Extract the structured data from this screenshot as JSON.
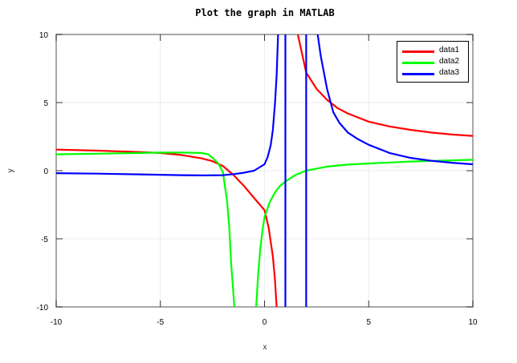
{
  "chart_data": {
    "type": "line",
    "title": "Plot the graph in MATLAB",
    "xlabel": "x",
    "ylabel": "y",
    "xlim": [
      -10,
      10
    ],
    "ylim": [
      -10,
      10
    ],
    "xticks": [
      -10,
      -5,
      0,
      5,
      10
    ],
    "yticks": [
      -10,
      -5,
      0,
      5,
      10
    ],
    "grid": true,
    "legend_position": "northeast",
    "series": [
      {
        "name": "data1",
        "color": "#ff0000",
        "segments": [
          [
            [
              -10,
              1.55
            ],
            [
              -8,
              1.47
            ],
            [
              -6,
              1.37
            ],
            [
              -5,
              1.3
            ],
            [
              -4,
              1.15
            ],
            [
              -3,
              0.9
            ],
            [
              -2.5,
              0.7
            ],
            [
              -2,
              0.35
            ],
            [
              -1.5,
              -0.3
            ],
            [
              -1,
              -1.1
            ],
            [
              -0.5,
              -2.0
            ],
            [
              0,
              -2.9
            ],
            [
              0.2,
              -4.2
            ],
            [
              0.4,
              -6.3
            ],
            [
              0.5,
              -8.0
            ],
            [
              0.58,
              -10
            ]
          ],
          [
            [
              1.6,
              10
            ],
            [
              1.8,
              8.6
            ],
            [
              2,
              7.2
            ],
            [
              2.5,
              6.0
            ],
            [
              3,
              5.2
            ],
            [
              3.5,
              4.6
            ],
            [
              4,
              4.2
            ],
            [
              5,
              3.6
            ],
            [
              6,
              3.25
            ],
            [
              7,
              3.0
            ],
            [
              8,
              2.8
            ],
            [
              9,
              2.65
            ],
            [
              10,
              2.55
            ]
          ]
        ]
      },
      {
        "name": "data2",
        "color": "#00ff00",
        "segments": [
          [
            [
              -10,
              1.2
            ],
            [
              -8,
              1.25
            ],
            [
              -6,
              1.3
            ],
            [
              -5,
              1.33
            ],
            [
              -4,
              1.33
            ],
            [
              -3,
              1.3
            ],
            [
              -2.7,
              1.2
            ],
            [
              -2.5,
              0.95
            ],
            [
              -2.2,
              0.5
            ],
            [
              -2,
              -0.1
            ],
            [
              -1.8,
              -2.2
            ],
            [
              -1.7,
              -4.0
            ],
            [
              -1.6,
              -6.9
            ],
            [
              -1.52,
              -8.5
            ],
            [
              -1.45,
              -10
            ]
          ],
          [
            [
              -0.4,
              -10
            ],
            [
              -0.3,
              -7.5
            ],
            [
              -0.2,
              -5.7
            ],
            [
              -0.1,
              -4.4
            ],
            [
              0,
              -3.4
            ],
            [
              0.25,
              -2.3
            ],
            [
              0.5,
              -1.6
            ],
            [
              0.75,
              -1.1
            ],
            [
              1,
              -0.8
            ],
            [
              1.5,
              -0.3
            ],
            [
              2,
              0
            ],
            [
              3,
              0.3
            ],
            [
              4,
              0.45
            ],
            [
              5,
              0.53
            ],
            [
              6,
              0.6
            ],
            [
              7,
              0.67
            ],
            [
              8,
              0.72
            ],
            [
              9,
              0.76
            ],
            [
              10,
              0.8
            ]
          ]
        ]
      },
      {
        "name": "data3",
        "color": "#0000ff",
        "segments": [
          [
            [
              -10,
              -0.18
            ],
            [
              -8,
              -0.22
            ],
            [
              -6,
              -0.27
            ],
            [
              -5,
              -0.3
            ],
            [
              -4,
              -0.33
            ],
            [
              -3,
              -0.35
            ],
            [
              -2,
              -0.33
            ],
            [
              -1.5,
              -0.25
            ],
            [
              -1,
              -0.15
            ],
            [
              -0.5,
              0
            ],
            [
              0,
              0.47
            ],
            [
              0.15,
              1.0
            ],
            [
              0.3,
              1.9
            ],
            [
              0.4,
              3.0
            ],
            [
              0.5,
              4.9
            ],
            [
              0.58,
              7.0
            ],
            [
              0.65,
              10
            ]
          ],
          [
            [
              1,
              -10
            ],
            [
              1,
              10
            ]
          ],
          [
            [
              2,
              -10
            ],
            [
              2,
              10
            ]
          ],
          [
            [
              2.55,
              10
            ],
            [
              2.7,
              8.4
            ],
            [
              3,
              6.0
            ],
            [
              3.3,
              4.3
            ],
            [
              3.6,
              3.5
            ],
            [
              4,
              2.8
            ],
            [
              4.5,
              2.3
            ],
            [
              5,
              1.9
            ],
            [
              6,
              1.3
            ],
            [
              7,
              0.94
            ],
            [
              8,
              0.73
            ],
            [
              9,
              0.58
            ],
            [
              10,
              0.47
            ]
          ]
        ]
      }
    ]
  },
  "legend": {
    "items": [
      {
        "label": "data1",
        "color": "#ff0000"
      },
      {
        "label": "data2",
        "color": "#00ff00"
      },
      {
        "label": "data3",
        "color": "#0000ff"
      }
    ]
  }
}
